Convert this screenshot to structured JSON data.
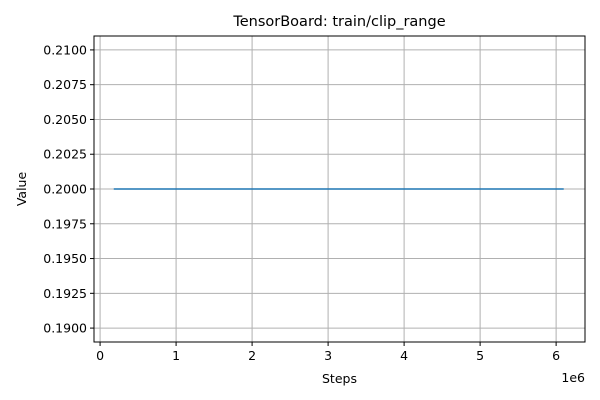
{
  "chart_data": {
    "type": "line",
    "title": "TensorBoard: train/clip_range",
    "xlabel": "Steps",
    "ylabel": "Value",
    "x_offset_label": "1e6",
    "xlim": [
      -80000,
      6380000
    ],
    "ylim": [
      0.189,
      0.211
    ],
    "xticks": [
      0,
      1000000,
      2000000,
      3000000,
      4000000,
      5000000,
      6000000
    ],
    "xtick_labels": [
      "0",
      "1",
      "2",
      "3",
      "4",
      "5",
      "6"
    ],
    "yticks": [
      0.19,
      0.1925,
      0.195,
      0.1975,
      0.2,
      0.2025,
      0.205,
      0.2075,
      0.21
    ],
    "ytick_labels": [
      "0.1900",
      "0.1925",
      "0.1950",
      "0.1975",
      "0.2000",
      "0.2025",
      "0.2050",
      "0.2075",
      "0.2100"
    ],
    "grid": true,
    "series": [
      {
        "color": "#1f77b4",
        "x": [
          180000,
          6100000
        ],
        "y": [
          0.2,
          0.2
        ]
      }
    ]
  }
}
